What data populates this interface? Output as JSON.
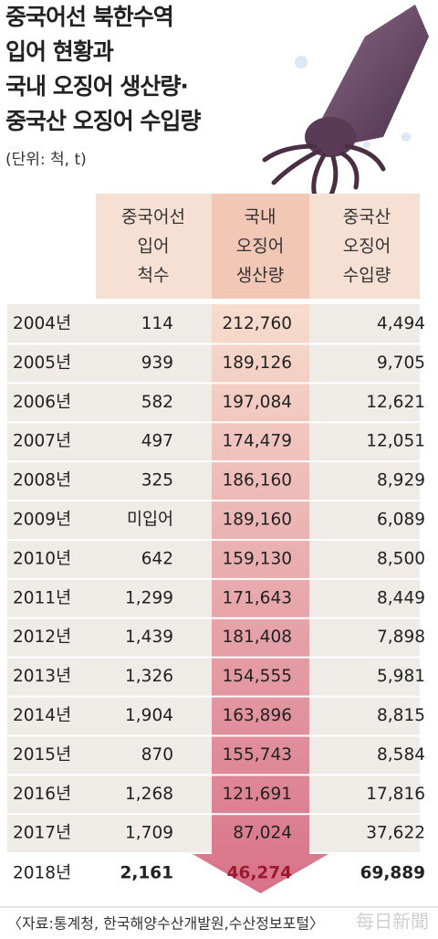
{
  "header": {
    "title_lines": [
      "중국어선 북한수역",
      "입어 현황과",
      "국내 오징어 생산량·",
      "중국산 오징어 수입량"
    ],
    "unit": "(단위: 척, t)"
  },
  "table": {
    "columns": [
      [
        "중국어선",
        "입어",
        "척수"
      ],
      [
        "국내",
        "오징어",
        "생산량"
      ],
      [
        "중국산",
        "오징어",
        "수입량"
      ]
    ],
    "rows": [
      [
        "2004년",
        "114",
        "212,760",
        "4,494"
      ],
      [
        "2005년",
        "939",
        "189,126",
        "9,705"
      ],
      [
        "2006년",
        "582",
        "197,084",
        "12,621"
      ],
      [
        "2007년",
        "497",
        "174,479",
        "12,051"
      ],
      [
        "2008년",
        "325",
        "186,160",
        "8,929"
      ],
      [
        "2009년",
        "미입어",
        "189,160",
        "6,089"
      ],
      [
        "2010년",
        "642",
        "159,130",
        "8,500"
      ],
      [
        "2011년",
        "1,299",
        "171,643",
        "8,449"
      ],
      [
        "2012년",
        "1,439",
        "181,408",
        "7,898"
      ],
      [
        "2013년",
        "1,326",
        "154,555",
        "5,981"
      ],
      [
        "2014년",
        "1,904",
        "163,896",
        "8,815"
      ],
      [
        "2015년",
        "870",
        "155,743",
        "8,584"
      ],
      [
        "2016년",
        "1,268",
        "121,691",
        "17,816"
      ],
      [
        "2017년",
        "1,709",
        "87,024",
        "37,622"
      ],
      [
        "2018년",
        "2,161",
        "46,274",
        "69,889"
      ]
    ]
  },
  "footer": {
    "source": "〈자료:통계청, 한국해양수산개발원,수산정보포털〉",
    "watermark": "每日新聞"
  }
}
